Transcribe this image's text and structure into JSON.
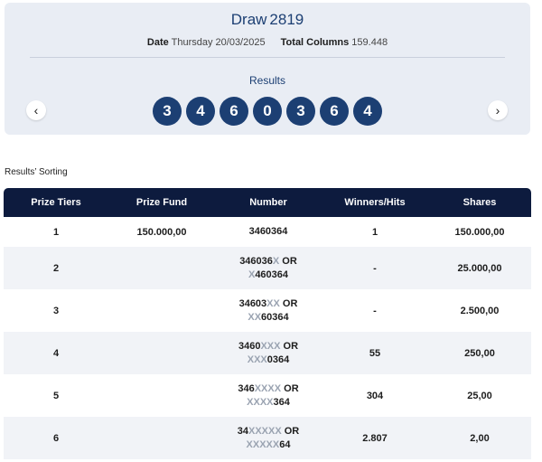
{
  "draw": {
    "label": "Draw",
    "number": "2819"
  },
  "meta": {
    "date_label": "Date",
    "date_value": "Thursday 20/03/2025",
    "columns_label": "Total Columns",
    "columns_value": "159.448"
  },
  "results": {
    "label": "Results",
    "numbers": [
      "3",
      "4",
      "6",
      "0",
      "3",
      "6",
      "4"
    ]
  },
  "nav": {
    "prev": "‹",
    "next": "›"
  },
  "sorting_label": "Results’ Sorting",
  "table": {
    "headers": [
      "Prize Tiers",
      "Prize Fund",
      "Number",
      "Winners/Hits",
      "Shares"
    ],
    "rows": [
      {
        "tier": "1",
        "fund": "150.000,00",
        "winners": "1",
        "shares": "150.000,00",
        "line1": {
          "pre": "3460364",
          "x": "",
          "post": ""
        },
        "line2": null
      },
      {
        "tier": "2",
        "fund": "",
        "winners": "-",
        "shares": "25.000,00",
        "line1": {
          "pre": "346036",
          "x": "X",
          "post": " OR"
        },
        "line2": {
          "pre": "",
          "x": "X",
          "post": "460364"
        }
      },
      {
        "tier": "3",
        "fund": "",
        "winners": "-",
        "shares": "2.500,00",
        "line1": {
          "pre": "34603",
          "x": "XX",
          "post": " OR"
        },
        "line2": {
          "pre": "",
          "x": "XX",
          "post": "60364"
        }
      },
      {
        "tier": "4",
        "fund": "",
        "winners": "55",
        "shares": "250,00",
        "line1": {
          "pre": "3460",
          "x": "XXX",
          "post": " OR"
        },
        "line2": {
          "pre": "",
          "x": "XXX",
          "post": "0364"
        }
      },
      {
        "tier": "5",
        "fund": "",
        "winners": "304",
        "shares": "25,00",
        "line1": {
          "pre": "346",
          "x": "XXXX",
          "post": " OR"
        },
        "line2": {
          "pre": "",
          "x": "XXXX",
          "post": "364"
        }
      },
      {
        "tier": "6",
        "fund": "",
        "winners": "2.807",
        "shares": "2,00",
        "line1": {
          "pre": "34",
          "x": "XXXXX",
          "post": " OR"
        },
        "line2": {
          "pre": "",
          "x": "XXXXX",
          "post": "64"
        }
      }
    ]
  },
  "colors": {
    "card_bg": "#e9edf4",
    "ball": "#1c3f73",
    "header_bg": "#0d1b3e",
    "masked_digit": "#9aa3b1"
  }
}
